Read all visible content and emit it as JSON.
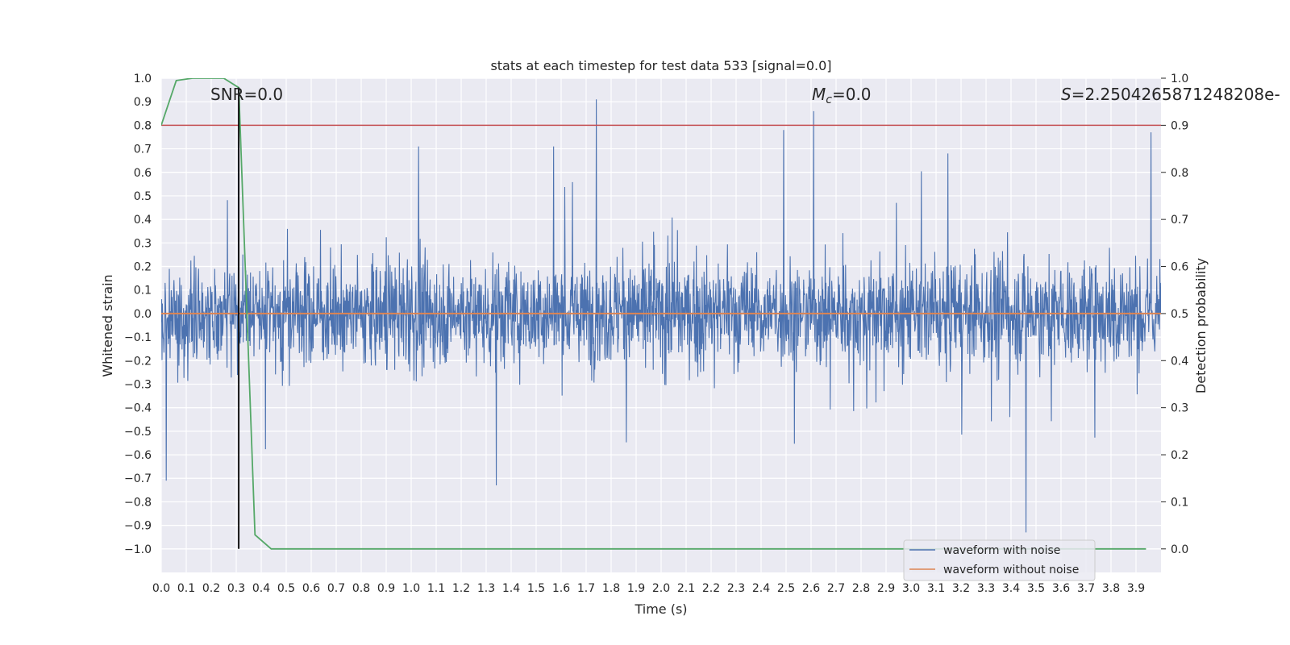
{
  "chart_data": {
    "type": "line",
    "title": "stats at each timestep for test data 533 [signal=0.0]",
    "xlabel": "Time (s)",
    "ylabel": "Whitened strain",
    "ylabel_right": "Detection probability",
    "xlim": [
      0.0,
      4.0
    ],
    "ylim": [
      -1.1,
      1.0
    ],
    "ylim_right": [
      -0.05,
      1.0
    ],
    "x_ticks": [
      "0.0",
      "0.1",
      "0.2",
      "0.3",
      "0.4",
      "0.5",
      "0.6",
      "0.7",
      "0.8",
      "0.9",
      "1.0",
      "1.1",
      "1.2",
      "1.3",
      "1.4",
      "1.5",
      "1.6",
      "1.7",
      "1.8",
      "1.9",
      "2.0",
      "2.1",
      "2.2",
      "2.3",
      "2.4",
      "2.5",
      "2.6",
      "2.7",
      "2.8",
      "2.9",
      "3.0",
      "3.1",
      "3.2",
      "3.3",
      "3.4",
      "3.5",
      "3.6",
      "3.7",
      "3.8",
      "3.9"
    ],
    "y_ticks": [
      "1.0",
      "0.9",
      "0.8",
      "0.7",
      "0.6",
      "0.5",
      "0.4",
      "0.3",
      "0.2",
      "0.1",
      "0.0",
      "−0.1",
      "−0.2",
      "−0.3",
      "−0.4",
      "−0.5",
      "−0.6",
      "−0.7",
      "−0.8",
      "−0.9",
      "−1.0"
    ],
    "y_ticks_right": [
      "1.0",
      "0.9",
      "0.8",
      "0.7",
      "0.6",
      "0.5",
      "0.4",
      "0.3",
      "0.2",
      "0.1",
      "0.0"
    ],
    "grid": true,
    "legend_position": "bottom-right",
    "annotations": {
      "snr": "SNR=0.0",
      "mc_symbol": "M",
      "mc_sub": "c",
      "mc_value": "=0.0",
      "s_symbol": "S",
      "s_value": "=2.250426587124820​8e-"
    },
    "series": [
      {
        "name": "waveform with noise",
        "color": "#4c72b0",
        "description": "dense noise trace, roughly between -0.6 and 0.6 with spikes",
        "noise_sigma": 0.2,
        "notable_spikes": [
          {
            "x": 1.74,
            "y": 0.91
          },
          {
            "x": 2.61,
            "y": 0.86
          },
          {
            "x": 2.49,
            "y": 0.78
          },
          {
            "x": 3.96,
            "y": 0.77
          },
          {
            "x": 0.31,
            "y": 0.73
          },
          {
            "x": 1.03,
            "y": 0.71
          },
          {
            "x": 1.57,
            "y": 0.71
          },
          {
            "x": 3.46,
            "y": -0.93
          },
          {
            "x": 3.96,
            "y": -0.98
          },
          {
            "x": 1.34,
            "y": -0.73
          },
          {
            "x": 0.02,
            "y": -0.71
          }
        ]
      },
      {
        "name": "waveform without noise",
        "color": "#dd8452",
        "x": [
          0.0,
          4.0
        ],
        "y": [
          0.0,
          0.0
        ]
      },
      {
        "name": "detection probability",
        "axis": "right",
        "color": "#55a868",
        "x": [
          0.0,
          0.06,
          0.125,
          0.2,
          0.25,
          0.31,
          0.375,
          0.44,
          3.94
        ],
        "y": [
          0.9,
          0.995,
          1.0,
          1.0,
          1.0,
          0.98,
          0.03,
          0.0,
          0.0
        ]
      }
    ],
    "threshold": {
      "axis": "right",
      "value": 0.9,
      "color": "#c44e52"
    },
    "marker_line": {
      "x": 0.31,
      "color": "#000000"
    },
    "legend_entries": [
      "waveform with noise",
      "waveform without noise"
    ]
  }
}
